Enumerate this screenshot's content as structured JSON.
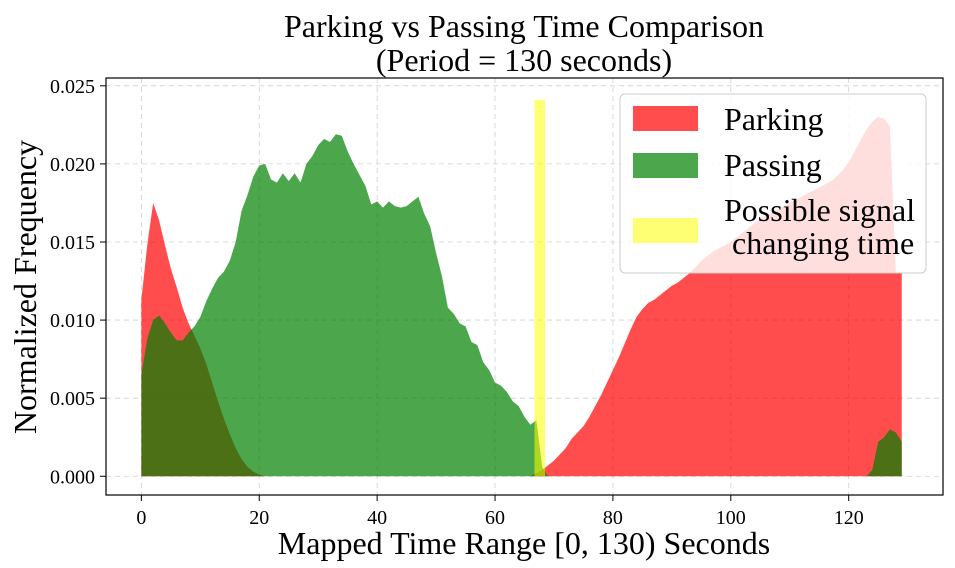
{
  "chart_data": {
    "type": "area",
    "title": "Parking vs Passing Time Comparison",
    "subtitle": "(Period = 130 seconds)",
    "xlabel": "Mapped Time Range [0, 130) Seconds",
    "ylabel": "Normalized Frequency",
    "xlim": [
      -6,
      136
    ],
    "ylim": [
      -0.0012,
      0.0255
    ],
    "xticks": [
      "0",
      "20",
      "40",
      "60",
      "80",
      "100",
      "120"
    ],
    "yticks": [
      "0.000",
      "0.005",
      "0.010",
      "0.015",
      "0.020",
      "0.025"
    ],
    "grid": true,
    "legend_position": "top-right",
    "series": [
      {
        "name": "Parking",
        "color": "#ff0000",
        "opacity": 0.7,
        "x": [
          0,
          1,
          2,
          3,
          4,
          5,
          6,
          7,
          8,
          9,
          10,
          11,
          12,
          13,
          14,
          15,
          16,
          17,
          18,
          19,
          20,
          21,
          22,
          66,
          67,
          68,
          69,
          70,
          71,
          72,
          73,
          74,
          75,
          76,
          77,
          78,
          79,
          80,
          81,
          82,
          83,
          84,
          85,
          86,
          87,
          88,
          89,
          90,
          91,
          92,
          93,
          94,
          95,
          96,
          97,
          98,
          99,
          100,
          101,
          102,
          103,
          104,
          105,
          106,
          107,
          108,
          109,
          110,
          111,
          112,
          113,
          114,
          115,
          116,
          117,
          118,
          119,
          120,
          121,
          122,
          123,
          124,
          125,
          126,
          127,
          128,
          129
        ],
        "values": [
          0.0113,
          0.0148,
          0.0175,
          0.0164,
          0.0148,
          0.0133,
          0.0121,
          0.0108,
          0.0098,
          0.009,
          0.0082,
          0.0072,
          0.006,
          0.0048,
          0.0037,
          0.0027,
          0.0018,
          0.0011,
          0.0006,
          0.0003,
          0.0001,
          0.0,
          0.0,
          0.0,
          0.0002,
          0.0004,
          0.0007,
          0.001,
          0.0014,
          0.0018,
          0.0024,
          0.0028,
          0.0032,
          0.0038,
          0.0045,
          0.0052,
          0.006,
          0.0068,
          0.0076,
          0.0085,
          0.0094,
          0.0102,
          0.0107,
          0.0111,
          0.0113,
          0.0116,
          0.0119,
          0.0122,
          0.0124,
          0.0127,
          0.013,
          0.0134,
          0.0138,
          0.0141,
          0.0144,
          0.0146,
          0.0148,
          0.015,
          0.0153,
          0.0156,
          0.0159,
          0.0162,
          0.0165,
          0.0167,
          0.0169,
          0.0171,
          0.0173,
          0.0175,
          0.0177,
          0.0179,
          0.0181,
          0.0183,
          0.0185,
          0.0187,
          0.0189,
          0.0192,
          0.0196,
          0.0201,
          0.0208,
          0.0215,
          0.0222,
          0.0227,
          0.023,
          0.0229,
          0.0224,
          0.013,
          0.013
        ]
      },
      {
        "name": "Passing",
        "color": "#008000",
        "opacity": 0.7,
        "x": [
          0,
          1,
          2,
          3,
          4,
          5,
          6,
          7,
          8,
          9,
          10,
          11,
          12,
          13,
          14,
          15,
          16,
          17,
          18,
          19,
          20,
          21,
          22,
          23,
          24,
          25,
          26,
          27,
          28,
          29,
          30,
          31,
          32,
          33,
          34,
          35,
          36,
          37,
          38,
          39,
          40,
          41,
          42,
          43,
          44,
          45,
          46,
          47,
          48,
          49,
          50,
          51,
          52,
          53,
          54,
          55,
          56,
          57,
          58,
          59,
          60,
          61,
          62,
          63,
          64,
          65,
          66,
          67,
          68,
          69,
          122,
          123,
          124,
          125,
          126,
          127,
          128,
          129
        ],
        "values": [
          0.0065,
          0.0088,
          0.01,
          0.0103,
          0.0098,
          0.0092,
          0.0087,
          0.0087,
          0.0092,
          0.0096,
          0.0102,
          0.0112,
          0.012,
          0.0127,
          0.0131,
          0.0138,
          0.015,
          0.017,
          0.018,
          0.0192,
          0.0199,
          0.02,
          0.019,
          0.0188,
          0.0194,
          0.0189,
          0.0194,
          0.0188,
          0.02,
          0.0205,
          0.0212,
          0.0216,
          0.0214,
          0.0219,
          0.0218,
          0.0208,
          0.02,
          0.0193,
          0.0186,
          0.0174,
          0.0176,
          0.0172,
          0.0176,
          0.0173,
          0.0172,
          0.0173,
          0.0176,
          0.0179,
          0.0168,
          0.016,
          0.0143,
          0.0128,
          0.0108,
          0.0104,
          0.0098,
          0.0096,
          0.0086,
          0.0084,
          0.0073,
          0.0068,
          0.006,
          0.0058,
          0.0054,
          0.0048,
          0.0045,
          0.0038,
          0.0033,
          0.0036,
          0.0006,
          0.0,
          0.0,
          0.0,
          0.0004,
          0.0022,
          0.0025,
          0.003,
          0.0028,
          0.0022
        ]
      }
    ],
    "annotations": [
      {
        "type": "vertical-band",
        "name": "Possible signal changing time",
        "color": "#ffff00",
        "opacity": 0.55,
        "x_range": [
          66.7,
          68.5
        ],
        "y_top": 0.0241
      }
    ],
    "legend": [
      {
        "label": "Parking",
        "color": "#ff0000"
      },
      {
        "label": "Passing",
        "color": "#008000"
      },
      {
        "label_lines": [
          "Possible signal",
          " changing time"
        ],
        "color": "#ffff00"
      }
    ]
  }
}
